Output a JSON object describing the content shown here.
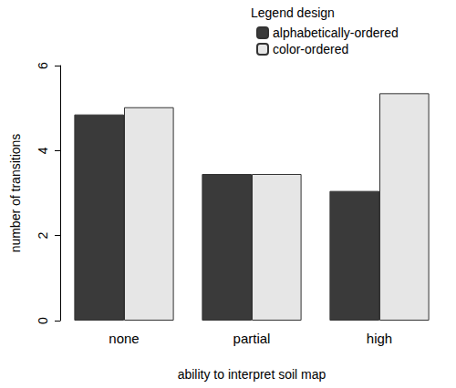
{
  "chart_data": {
    "type": "bar",
    "x_label": "ability to interpret soil map",
    "y_label": "number of transitions",
    "legend_title": "Legend design",
    "categories": [
      "none",
      "partial",
      "high"
    ],
    "series": [
      {
        "name": "alphabetically-ordered",
        "color": "#3a3a3a",
        "values": [
          4.85,
          3.45,
          3.05
        ]
      },
      {
        "name": "color-ordered",
        "color": "#e6e6e6",
        "values": [
          5.02,
          3.45,
          5.35
        ]
      }
    ],
    "ylim": [
      0,
      6
    ],
    "yticks": [
      0,
      2,
      4,
      6
    ],
    "grid": false,
    "legend": "top-right"
  }
}
